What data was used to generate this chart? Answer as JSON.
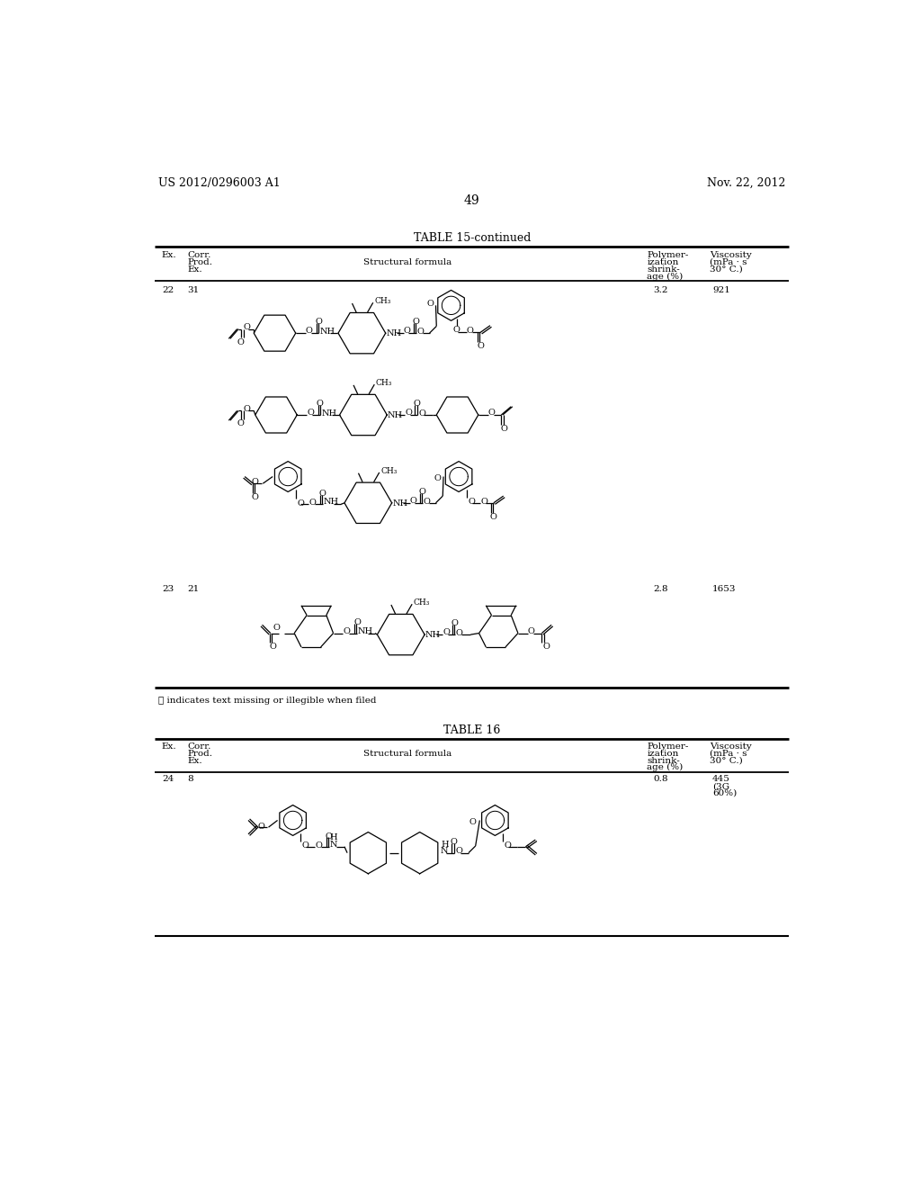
{
  "patent_number": "US 2012/0296003 A1",
  "patent_date": "Nov. 22, 2012",
  "page_number": "49",
  "table15_title": "TABLE 15-continued",
  "table16_title": "TABLE 16",
  "footnote": "ⓘ indicates text missing or illegible when filed",
  "rows_t15": [
    {
      "ex": "22",
      "corr": "31",
      "shrink": "3.2",
      "visc": "921"
    },
    {
      "ex": "23",
      "corr": "21",
      "shrink": "2.8",
      "visc": "1653"
    }
  ],
  "rows_t16": [
    {
      "ex": "24",
      "corr": "8",
      "shrink": "0.8",
      "visc": "445\n(3G\n60%)"
    }
  ]
}
